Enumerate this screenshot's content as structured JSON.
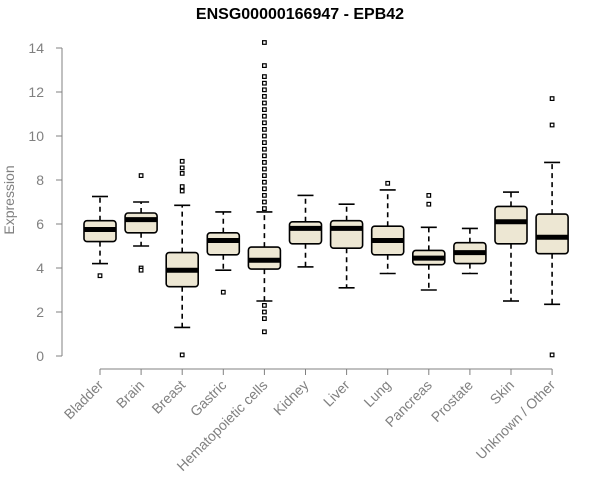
{
  "chart_data": {
    "type": "box",
    "title": "ENSG00000166947 - EPB42",
    "xlabel": "",
    "ylabel": "Expression",
    "ylim": [
      0,
      14
    ],
    "yticks": [
      0,
      2,
      4,
      6,
      8,
      10,
      12,
      14
    ],
    "grid": false,
    "legend": "none",
    "colors": {
      "box_fill": "#ede7d3",
      "box_stroke": "#000000",
      "median": "#000000",
      "axis": "#808080",
      "tick_label": "#808080"
    },
    "categories": [
      "Bladder",
      "Brain",
      "Breast",
      "Gastric",
      "Hematopoietic cells",
      "Kidney",
      "Liver",
      "Lung",
      "Pancreas",
      "Prostate",
      "Skin",
      "Unknown / Other"
    ],
    "boxes": [
      {
        "min": 4.2,
        "q1": 5.2,
        "median": 5.75,
        "q3": 6.15,
        "max": 7.25,
        "outliers": [
          3.65
        ]
      },
      {
        "min": 5.0,
        "q1": 5.6,
        "median": 6.2,
        "q3": 6.5,
        "max": 7.0,
        "outliers": [
          8.2,
          4.0,
          3.9
        ]
      },
      {
        "min": 1.3,
        "q1": 3.15,
        "median": 3.9,
        "q3": 4.7,
        "max": 6.85,
        "outliers": [
          7.5,
          7.7,
          8.3,
          8.55,
          8.85,
          0.05
        ]
      },
      {
        "min": 3.9,
        "q1": 4.6,
        "median": 5.25,
        "q3": 5.6,
        "max": 6.55,
        "outliers": [
          2.9
        ]
      },
      {
        "min": 2.5,
        "q1": 3.95,
        "median": 4.35,
        "q3": 4.95,
        "max": 6.55,
        "outliers": [
          6.7,
          7.0,
          7.3,
          7.6,
          7.9,
          8.2,
          8.5,
          8.8,
          9.1,
          9.4,
          9.7,
          10.0,
          10.3,
          10.6,
          10.9,
          11.2,
          11.5,
          11.8,
          12.1,
          12.4,
          12.7,
          13.2,
          14.25,
          2.3,
          2.0,
          1.7,
          1.1
        ]
      },
      {
        "min": 4.05,
        "q1": 5.1,
        "median": 5.8,
        "q3": 6.1,
        "max": 7.3,
        "outliers": []
      },
      {
        "min": 3.1,
        "q1": 4.9,
        "median": 5.8,
        "q3": 6.15,
        "max": 6.9,
        "outliers": []
      },
      {
        "min": 3.75,
        "q1": 4.6,
        "median": 5.25,
        "q3": 5.9,
        "max": 7.55,
        "outliers": [
          7.85
        ]
      },
      {
        "min": 3.0,
        "q1": 4.15,
        "median": 4.45,
        "q3": 4.8,
        "max": 5.85,
        "outliers": [
          6.9,
          7.3
        ]
      },
      {
        "min": 3.75,
        "q1": 4.2,
        "median": 4.7,
        "q3": 5.15,
        "max": 5.8,
        "outliers": []
      },
      {
        "min": 2.5,
        "q1": 5.1,
        "median": 6.1,
        "q3": 6.8,
        "max": 7.45,
        "outliers": []
      },
      {
        "min": 2.35,
        "q1": 4.65,
        "median": 5.4,
        "q3": 6.45,
        "max": 8.8,
        "outliers": [
          10.5,
          11.7,
          0.05
        ]
      }
    ]
  }
}
